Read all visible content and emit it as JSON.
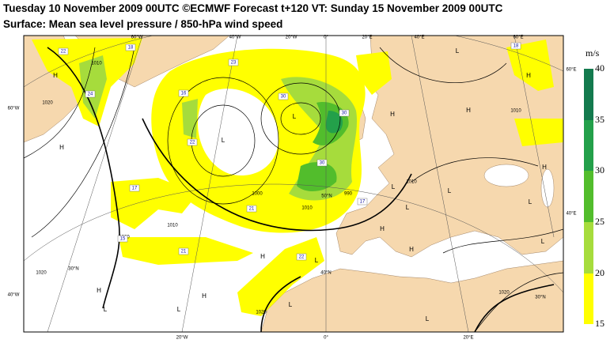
{
  "header": {
    "title": "Tuesday 10 November 2009 00UTC ©ECMWF Forecast t+120 VT: Sunday 15 November 2009 00UTC",
    "subtitle": "Surface: Mean sea level pressure / 850-hPa wind speed"
  },
  "map": {
    "longitude_labels_top": [
      "60°W",
      "40°W",
      "20°W",
      "0°",
      "20°E",
      "40°E",
      "60°E"
    ],
    "longitude_labels_bottom": [
      "20°W",
      "0°",
      "20°E"
    ],
    "latitude_labels_left": [
      "60°W",
      "40°W"
    ],
    "latitude_labels_right": [
      "60°E",
      "40°E"
    ],
    "grid_labels": [
      "30°N",
      "40°N",
      "50°N",
      "30°N"
    ],
    "pressure_centers": [
      "L",
      "H",
      "H",
      "L",
      "L",
      "H",
      "H",
      "H",
      "L",
      "L",
      "L",
      "L",
      "H",
      "H",
      "L",
      "H",
      "L",
      "L",
      "L",
      "H",
      "H",
      "H",
      "L",
      "L"
    ],
    "isobar_labels": [
      "1010",
      "1020",
      "1000",
      "1010",
      "1020",
      "1020",
      "1020",
      "1010",
      "990",
      "1010",
      "1020",
      "1010"
    ],
    "wind_labels": [
      "22",
      "18",
      "23",
      "16",
      "22",
      "17",
      "21",
      "21",
      "15",
      "24",
      "30",
      "30",
      "30",
      "17",
      "18",
      "22"
    ]
  },
  "legend": {
    "unit": "m/s",
    "levels": [
      15,
      20,
      25,
      30,
      35,
      40
    ]
  }
}
